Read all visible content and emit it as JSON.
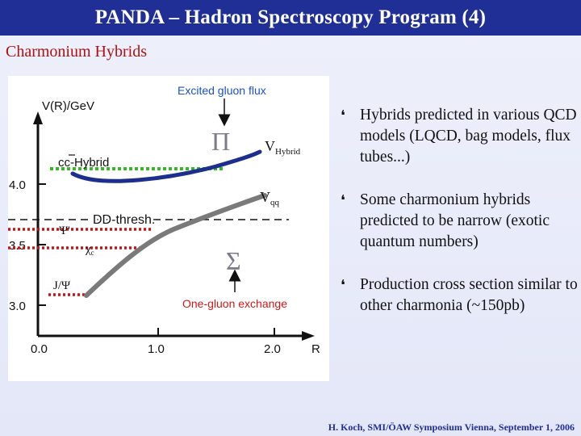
{
  "header": {
    "title": "PANDA – Hadron Spectroscopy Program (4)"
  },
  "subtitle": "Charmonium Hybrids",
  "figure": {
    "y_axis_label": "V(R)/GeV",
    "x_axis_label": "R",
    "x_ticks": [
      "0.0",
      "1.0",
      "2.0"
    ],
    "y_ticks": [
      "4.0",
      "3.5",
      "3.0"
    ],
    "excited_gluon_label": "Excited gluon flux",
    "one_gluon_label": "One-gluon exchange",
    "pi_symbol": "Π",
    "sigma_symbol": "Σ",
    "v_hybrid_label": "V",
    "v_hybrid_sub": "Hybrid",
    "v_qq_label": "V",
    "v_qq_sub": "qq",
    "cc_hybrid_label": "cc-Hybrid",
    "dd_thresh_label": "DD-thresh.",
    "psi_label": "Ψ'",
    "chi_label": "χ",
    "chi_sub": "c",
    "jpsi_label": "J/Ψ",
    "colors": {
      "hybrid_curve": "#1c2f8c",
      "qq_curve": "#7a7a7a",
      "hybrid_level": "#33bb22",
      "charmonium_level": "#cc1111",
      "annotation": "#d01818",
      "gluon_flux": "#1a4fd0"
    }
  },
  "bullets": [
    "Hybrids predicted in various QCD models (LQCD, bag models, flux tubes...)",
    "Some charmonium hybrids predicted to be narrow (exotic quantum numbers)",
    "Production cross section similar to other charmonia (~150pb)"
  ],
  "footer": "H. Koch, SMI/ÖAW Symposium Vienna, September 1, 2006"
}
